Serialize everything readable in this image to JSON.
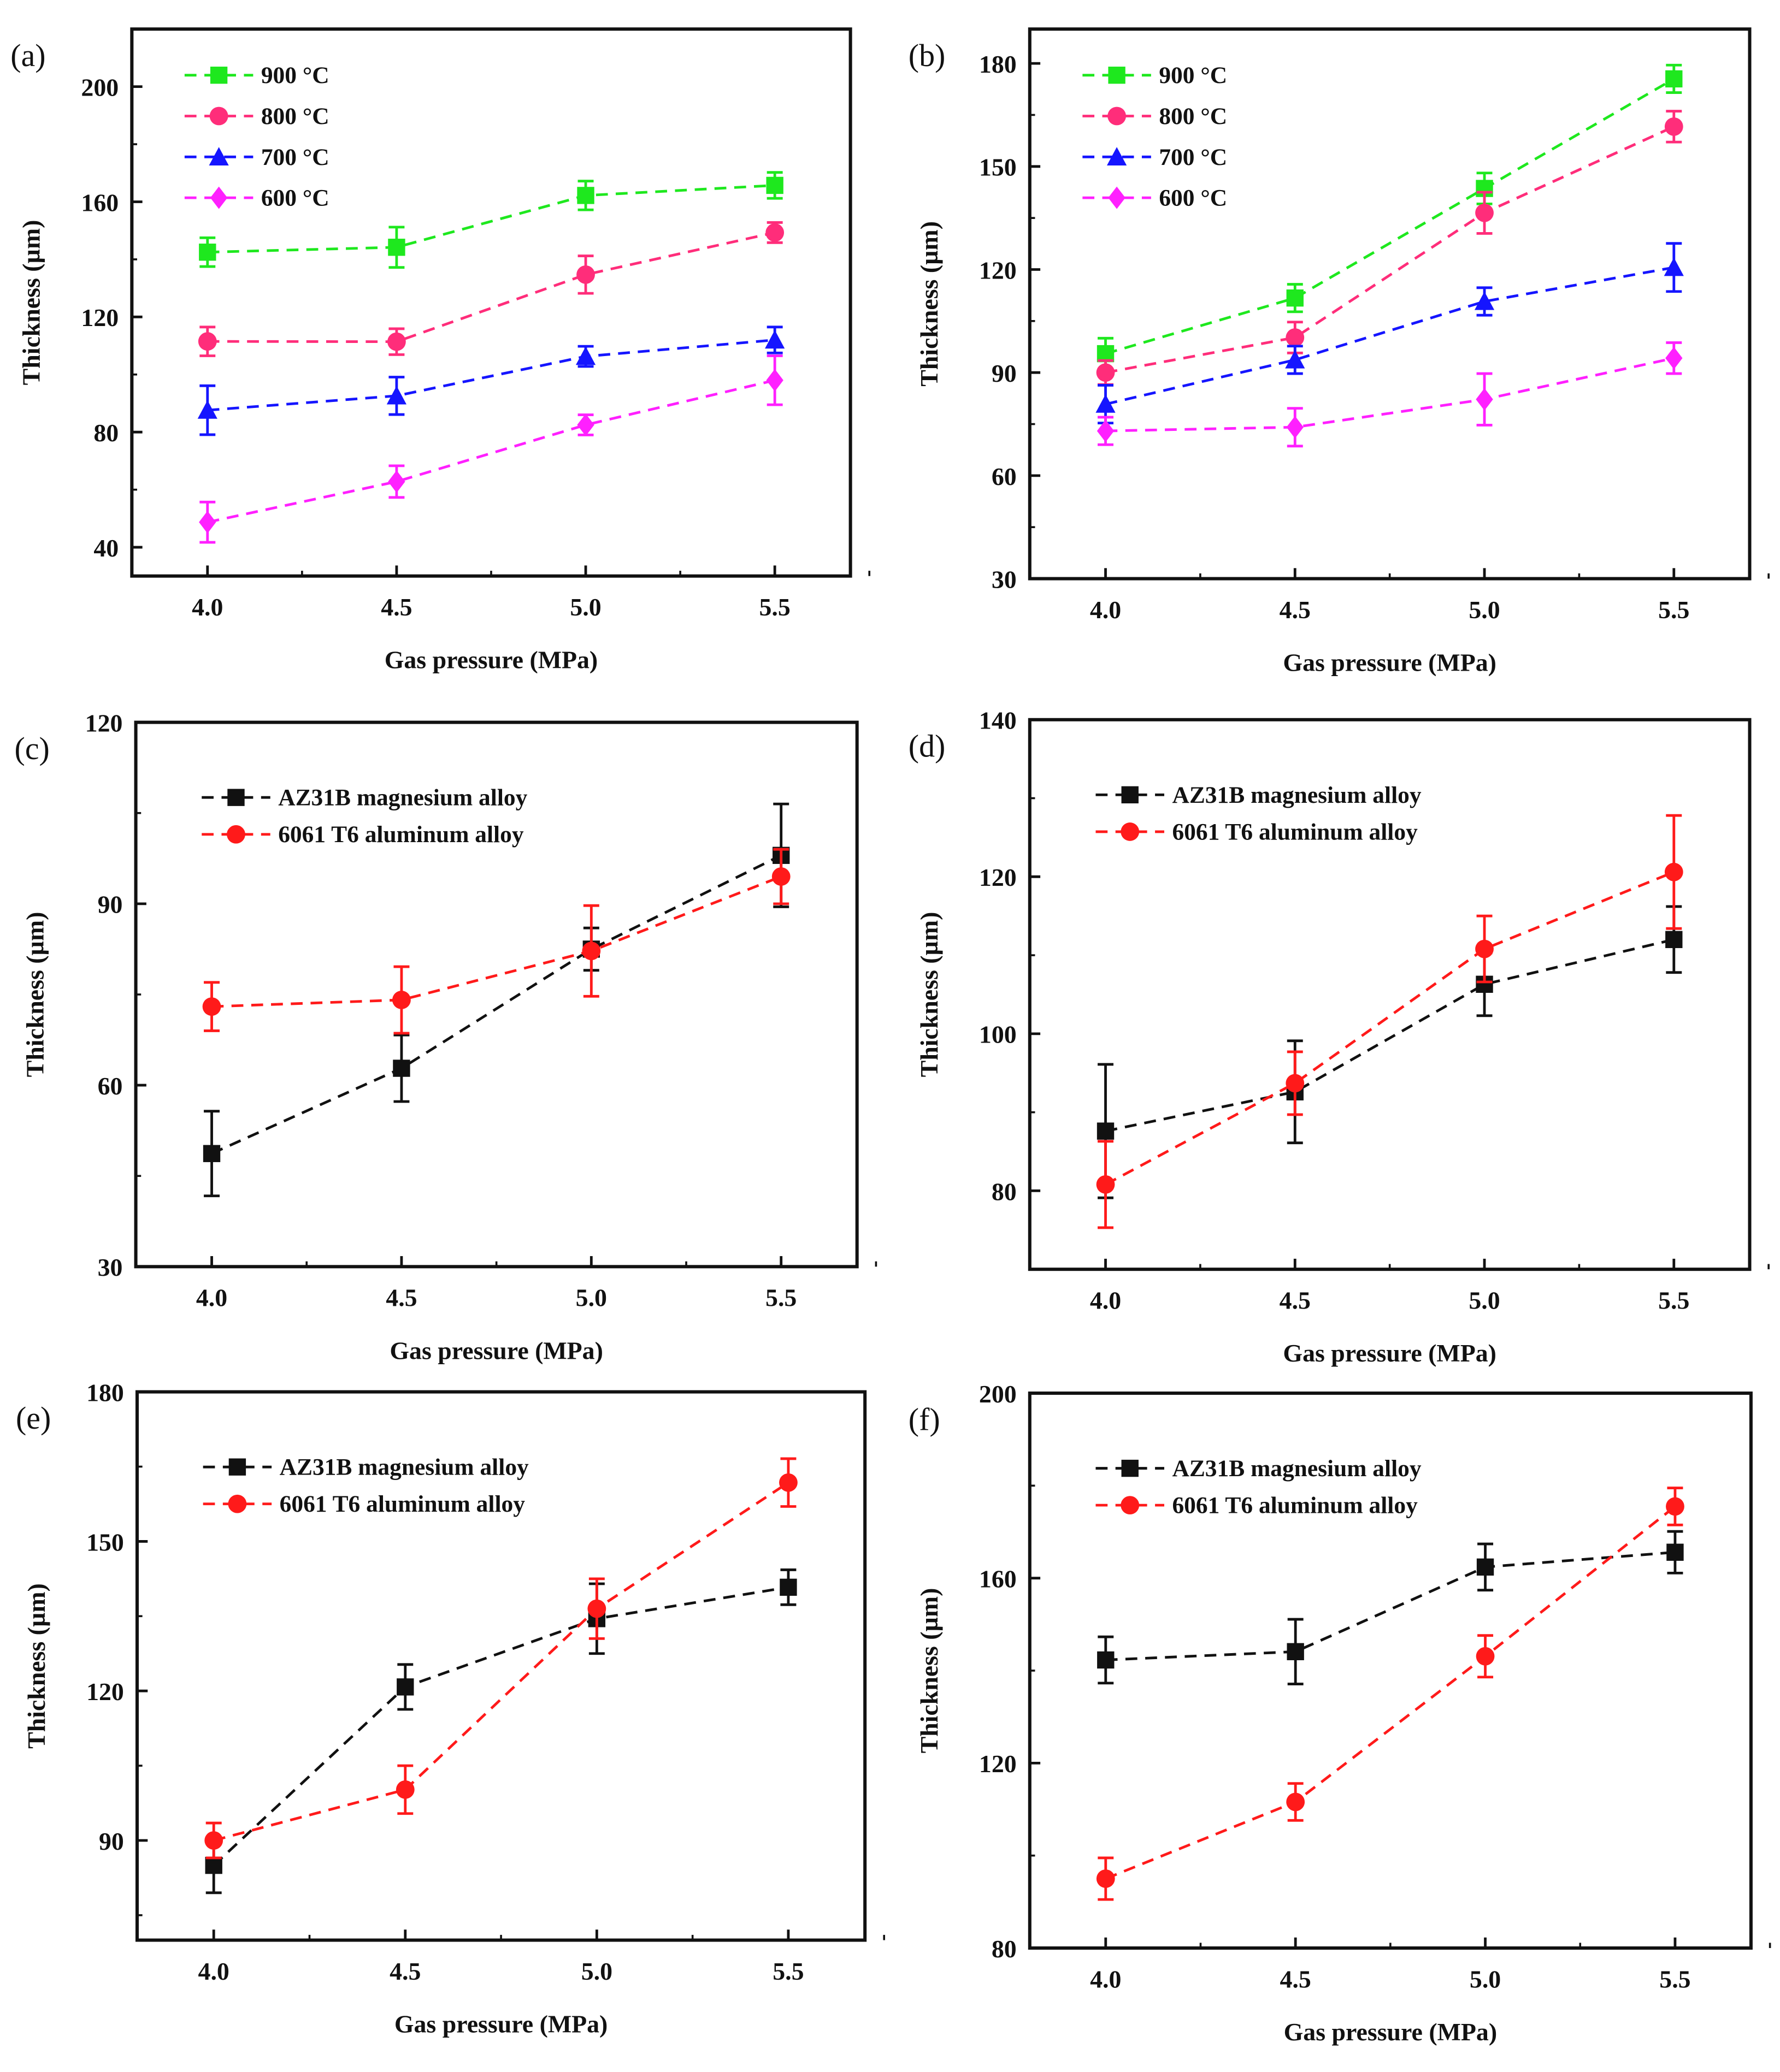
{
  "chart_data": [
    {
      "panel": "(a)",
      "type": "line",
      "xlabel": "Gas pressure (MPa)",
      "ylabel": "Thickness (µm)",
      "xlim": [
        3.8,
        5.7
      ],
      "ylim": [
        30,
        220
      ],
      "xticks": [
        "4.0",
        "4.5",
        "5.0",
        "5.5"
      ],
      "yticks": [
        40,
        80,
        120,
        160,
        200
      ],
      "legend": "top-left",
      "x": [
        4.0,
        4.5,
        5.0,
        5.5
      ],
      "series": [
        {
          "name": "900 °C",
          "color": "#1ee81e",
          "marker": "square",
          "values": [
            142.5,
            144.2,
            162.2,
            165.7
          ],
          "errors": [
            5,
            7,
            5,
            4.5
          ]
        },
        {
          "name": "800 °C",
          "color": "#ff2d7a",
          "marker": "circle",
          "values": [
            111.5,
            111.4,
            134.7,
            149.3
          ],
          "errors": [
            5,
            4.5,
            6.5,
            3.5
          ]
        },
        {
          "name": "700 °C",
          "color": "#1515ff",
          "marker": "triangle",
          "values": [
            87.6,
            92.6,
            106.3,
            112.0
          ],
          "errors": [
            8.5,
            6.5,
            3.5,
            4.5
          ]
        },
        {
          "name": "600 °C",
          "color": "#ff20ff",
          "marker": "diamond",
          "values": [
            48.7,
            62.8,
            82.5,
            98.0
          ],
          "errors": [
            7,
            5.5,
            3.5,
            8.5
          ]
        }
      ]
    },
    {
      "panel": "(b)",
      "type": "line",
      "xlabel": "Gas pressure (MPa)",
      "ylabel": "Thickness (µm)",
      "xlim": [
        3.8,
        5.7
      ],
      "ylim": [
        30,
        190
      ],
      "xticks": [
        "4.0",
        "4.5",
        "5.0",
        "5.5"
      ],
      "yticks": [
        30,
        60,
        90,
        120,
        150,
        180
      ],
      "legend": "top-left",
      "x": [
        4.0,
        4.5,
        5.0,
        5.5
      ],
      "series": [
        {
          "name": "900 °C",
          "color": "#1ee81e",
          "marker": "square",
          "values": [
            95.5,
            111.7,
            143.6,
            175.5
          ],
          "errors": [
            4.5,
            4,
            4.5,
            4
          ]
        },
        {
          "name": "800 °C",
          "color": "#ff2d7a",
          "marker": "circle",
          "values": [
            90.0,
            100.2,
            136.5,
            161.6
          ],
          "errors": [
            3.5,
            4.5,
            6,
            4.5
          ]
        },
        {
          "name": "700 °C",
          "color": "#1515ff",
          "marker": "triangle",
          "values": [
            80.8,
            93.7,
            110.7,
            120.6
          ],
          "errors": [
            5.5,
            4,
            4,
            7
          ]
        },
        {
          "name": "600 °C",
          "color": "#ff20ff",
          "marker": "diamond",
          "values": [
            73.0,
            74.1,
            82.2,
            94.2
          ],
          "errors": [
            4,
            5.5,
            7.5,
            4.5
          ]
        }
      ]
    },
    {
      "panel": "(c)",
      "type": "line",
      "xlabel": "Gas pressure (MPa)",
      "ylabel": "Thickness (µm)",
      "xlim": [
        3.8,
        5.7
      ],
      "ylim": [
        30,
        120
      ],
      "xticks": [
        "4.0",
        "4.5",
        "5.0",
        "5.5"
      ],
      "yticks": [
        30,
        60,
        90,
        120
      ],
      "legend": "top-left",
      "x": [
        4.0,
        4.5,
        5.0,
        5.5
      ],
      "series": [
        {
          "name": "AZ31B magnesium alloy",
          "color": "#111111",
          "marker": "square",
          "values": [
            48.7,
            62.8,
            82.5,
            98.0
          ],
          "errors": [
            7,
            5.5,
            3.5,
            8.5
          ]
        },
        {
          "name": "6061 T6 aluminum alloy",
          "color": "#ff1a1a",
          "marker": "circle",
          "values": [
            73.0,
            74.1,
            82.2,
            94.5
          ],
          "errors": [
            4,
            5.5,
            7.5,
            4.5
          ]
        }
      ]
    },
    {
      "panel": "(d)",
      "type": "line",
      "xlabel": "Gas pressure (MPa)",
      "ylabel": "Thickness (µm)",
      "xlim": [
        3.8,
        5.7
      ],
      "ylim": [
        70,
        140
      ],
      "xticks": [
        "4.0",
        "4.5",
        "5.0",
        "5.5"
      ],
      "yticks": [
        80,
        100,
        120,
        140
      ],
      "legend": "top-left",
      "x": [
        4.0,
        4.5,
        5.0,
        5.5
      ],
      "series": [
        {
          "name": "AZ31B magnesium alloy",
          "color": "#111111",
          "marker": "square",
          "values": [
            87.6,
            92.6,
            106.3,
            112.0
          ],
          "errors": [
            8.5,
            6.5,
            4,
            4.2
          ]
        },
        {
          "name": "6061 T6 aluminum alloy",
          "color": "#ff1a1a",
          "marker": "circle",
          "values": [
            80.8,
            93.7,
            110.8,
            120.6
          ],
          "errors": [
            5.5,
            4,
            4.2,
            7.2
          ]
        }
      ]
    },
    {
      "panel": "(e)",
      "type": "line",
      "xlabel": "Gas pressure (MPa)",
      "ylabel": "Thickness (µm)",
      "xlim": [
        3.8,
        5.7
      ],
      "ylim": [
        70,
        180
      ],
      "xticks": [
        "4.0",
        "4.5",
        "5.0",
        "5.5"
      ],
      "yticks": [
        90,
        120,
        150,
        180
      ],
      "legend": "top-left",
      "x": [
        4.0,
        4.5,
        5.0,
        5.5
      ],
      "series": [
        {
          "name": "AZ31B magnesium alloy",
          "color": "#111111",
          "marker": "square",
          "values": [
            85.0,
            120.8,
            134.5,
            140.8
          ],
          "errors": [
            5.5,
            4.5,
            7,
            3.5
          ]
        },
        {
          "name": "6061 T6 aluminum alloy",
          "color": "#ff1a1a",
          "marker": "circle",
          "values": [
            90.0,
            100.2,
            136.5,
            161.8
          ],
          "errors": [
            3.5,
            4.8,
            6,
            4.8
          ]
        }
      ]
    },
    {
      "panel": "(f)",
      "type": "line",
      "xlabel": "Gas pressure (MPa)",
      "ylabel": "Thickness (µm)",
      "xlim": [
        3.8,
        5.7
      ],
      "ylim": [
        80,
        200
      ],
      "xticks": [
        "4.0",
        "4.5",
        "5.0",
        "5.5"
      ],
      "yticks": [
        80,
        120,
        160,
        200
      ],
      "legend": "top-left",
      "x": [
        4.0,
        4.5,
        5.0,
        5.5
      ],
      "series": [
        {
          "name": "AZ31B magnesium alloy",
          "color": "#111111",
          "marker": "square",
          "values": [
            142.3,
            144.1,
            162.4,
            165.6
          ],
          "errors": [
            5,
            7,
            5,
            4.5
          ]
        },
        {
          "name": "6061 T6 aluminum alloy",
          "color": "#ff1a1a",
          "marker": "circle",
          "values": [
            95.0,
            111.6,
            143.1,
            175.5
          ],
          "errors": [
            4.5,
            4,
            4.5,
            4
          ]
        }
      ]
    }
  ]
}
